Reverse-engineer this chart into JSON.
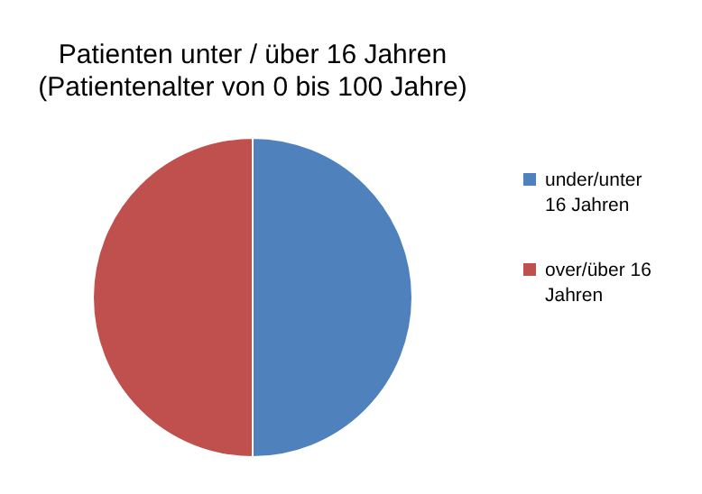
{
  "chart_data": {
    "type": "pie",
    "title": "Patienten unter / über 16 Jahren",
    "subtitle": "(Patientenalter von 0 bis 100 Jahre)",
    "categories": [
      "under/unter 16 Jahren",
      "over/über 16 Jahren"
    ],
    "values": [
      50,
      50
    ],
    "colors": [
      "#4f81bd",
      "#c0504d"
    ],
    "legend": "right"
  }
}
